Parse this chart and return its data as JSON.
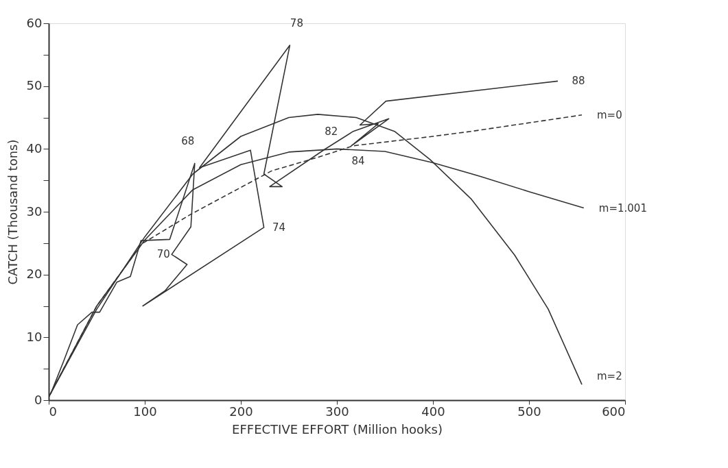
{
  "chart_data": {
    "type": "line",
    "xlabel": "EFFECTIVE EFFORT (Million hooks)",
    "ylabel": "CATCH (Thousand tons)",
    "xlim": [
      0,
      600
    ],
    "xticks": [
      0,
      100,
      200,
      300,
      400,
      500,
      600
    ],
    "ylim": [
      0,
      60
    ],
    "yticks": [
      0,
      {
        "value": 5,
        "label": null
      },
      10,
      {
        "value": 15,
        "label": null
      },
      20,
      {
        "value": 25,
        "label": null
      },
      30,
      {
        "value": 35,
        "label": null
      },
      40,
      {
        "value": 45,
        "label": null
      },
      50,
      {
        "value": 55,
        "label": null
      },
      60
    ],
    "marker": "none",
    "series": [
      {
        "color": "#333333",
        "line_style": "solid",
        "x": [
          2,
          15,
          30,
          45,
          53,
          71,
          85,
          96,
          126,
          152,
          148,
          128,
          144,
          121,
          98,
          224,
          210,
          157,
          251,
          224,
          243,
          230,
          287,
          317,
          354,
          315,
          343,
          324,
          351,
          530
        ],
        "values": [
          1,
          6,
          12,
          14,
          14,
          18.8,
          19.7,
          25.4,
          25.6,
          37.7,
          27.6,
          23.2,
          21.6,
          17.4,
          15,
          27.5,
          39.8,
          37,
          56.5,
          36,
          34,
          34,
          39.9,
          42.8,
          44.8,
          40.5,
          44,
          43.8,
          47.6,
          50.8
        ]
      },
      {
        "name": "m=0",
        "color": "#333333",
        "line_style": "dashed",
        "x": [
          0,
          50,
          97,
          148,
          232,
          281,
          317,
          400,
          440,
          555
        ],
        "values": [
          0.5,
          15,
          24.9,
          29.6,
          36.5,
          38.7,
          40.5,
          42,
          42.8,
          45.4
        ]
      },
      {
        "name": "m=1.001",
        "color": "#333333",
        "line_style": "solid",
        "x": [
          0,
          50,
          100,
          150,
          200,
          250,
          300,
          350,
          400,
          450,
          500,
          557
        ],
        "values": [
          0.5,
          15,
          25.5,
          33.5,
          37.5,
          39.5,
          40,
          39.6,
          37.8,
          35.6,
          33.2,
          30.6
        ]
      },
      {
        "name": "m=2",
        "color": "#333333",
        "line_style": "solid",
        "x": [
          0,
          50,
          100,
          150,
          200,
          250,
          280,
          320,
          360,
          397,
          440,
          485,
          520,
          555
        ],
        "values": [
          0.5,
          14.5,
          26,
          36,
          42,
          45,
          45.5,
          45,
          42.8,
          38.3,
          32,
          23.1,
          14.5,
          2.5
        ]
      }
    ],
    "annotations": [
      {
        "text": "68",
        "x": 152,
        "y": 37.7
      },
      {
        "text": "70",
        "x": 128,
        "y": 23.2
      },
      {
        "text": "74",
        "x": 224,
        "y": 27.5
      },
      {
        "text": "78",
        "x": 251,
        "y": 56.5
      },
      {
        "text": "82",
        "x": 287,
        "y": 39.9
      },
      {
        "text": "84",
        "x": 315,
        "y": 40.5
      },
      {
        "text": "88",
        "x": 530,
        "y": 50.8
      }
    ]
  }
}
